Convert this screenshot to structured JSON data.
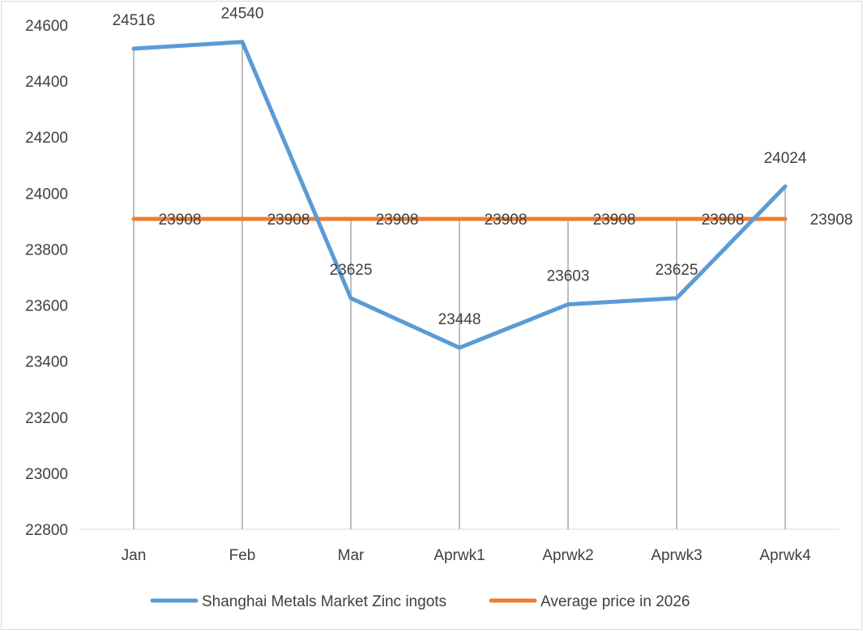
{
  "chart_data": {
    "type": "line",
    "categories": [
      "Jan",
      "Feb",
      "Mar",
      "Aprwk1",
      "Aprwk2",
      "Aprwk3",
      "Aprwk4"
    ],
    "series": [
      {
        "name": "Shanghai Metals Market Zinc ingots",
        "color": "#5b9bd5",
        "values": [
          24516,
          24540,
          23625,
          23448,
          23603,
          23625,
          24024
        ]
      },
      {
        "name": "Average price in 2026",
        "color": "#ed7d31",
        "values": [
          23908,
          23908,
          23908,
          23908,
          23908,
          23908,
          23908
        ]
      }
    ],
    "ylim": [
      22800,
      24600
    ],
    "yticks": [
      22800,
      23000,
      23200,
      23400,
      23600,
      23800,
      24000,
      24200,
      24400,
      24600
    ],
    "data_labels": true,
    "drop_lines": true,
    "grid": false,
    "legend": "bottom",
    "title": "",
    "xlabel": "",
    "ylabel": ""
  }
}
